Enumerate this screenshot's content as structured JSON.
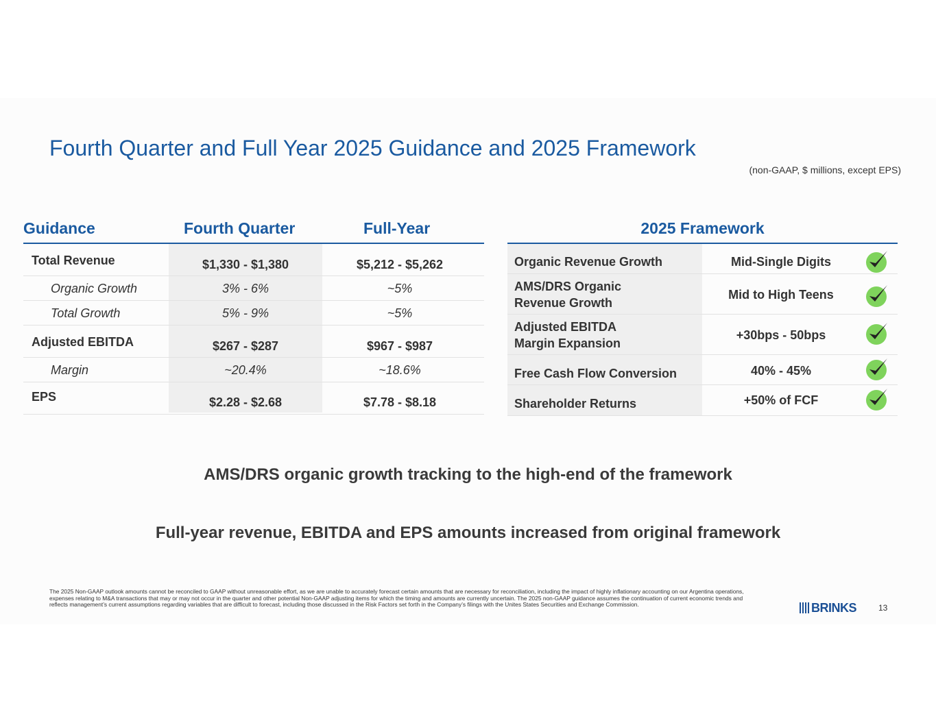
{
  "slide": {
    "title": "Fourth Quarter and Full Year 2025 Guidance and 2025 Framework",
    "subtitle": "(non-GAAP, $ millions, except EPS)",
    "page_number": "13",
    "logo_text": "BRINKS"
  },
  "guidance": {
    "headers": [
      "Guidance",
      "Fourth Quarter",
      "Full-Year"
    ],
    "rows": [
      {
        "label": "Total Revenue",
        "q4": "$1,330 - $1,380",
        "fy": "$5,212 - $5,262"
      },
      {
        "label": "Organic Growth",
        "q4": "3% - 6%",
        "fy": "~5%"
      },
      {
        "label": "Total Growth",
        "q4": "5% - 9%",
        "fy": "~5%"
      },
      {
        "label": "Adjusted EBITDA",
        "q4": "$267 - $287",
        "fy": "$967 - $987"
      },
      {
        "label": "Margin",
        "q4": "~20.4%",
        "fy": "~18.6%"
      },
      {
        "label": "EPS",
        "q4": "$2.28 - $2.68",
        "fy": "$7.78 - $8.18"
      }
    ]
  },
  "framework": {
    "header": "2025 Framework",
    "rows": [
      {
        "label": "Organic Revenue Growth",
        "value": "Mid-Single Digits"
      },
      {
        "label_line1": "AMS/DRS Organic",
        "label_line2": "Revenue Growth",
        "value": "Mid to High Teens"
      },
      {
        "label_line1": "Adjusted EBITDA",
        "label_line2": "Margin Expansion",
        "value": "+30bps - 50bps"
      },
      {
        "label": "Free Cash Flow Conversion",
        "value": "40% - 45%"
      },
      {
        "label": "Shareholder Returns",
        "value": "+50% of FCF"
      }
    ],
    "check_icon": "checkmark-icon",
    "check_color": "#5cb83c"
  },
  "messages": [
    "AMS/DRS organic growth tracking to the high-end of the framework",
    "Full-year revenue, EBITDA and EPS amounts increased from original framework"
  ],
  "footnote": "The 2025 Non-GAAP outlook amounts cannot be reconciled to GAAP without unreasonable effort, as we are unable to accurately forecast certain amounts that are necessary for reconciliation, including the impact of highly inflationary accounting on our Argentina operations, expenses relating to M&A transactions that may or may not occur in the quarter and other potential Non-GAAP adjusting items for which the timing and amounts are currently uncertain.  The 2025 non-GAAP guidance assumes the continuation of current economic trends and reflects management’s current assumptions regarding variables that are difficult to forecast, including those discussed in the Risk Factors set forth in the Company’s filings with the Unites States Securities and Exchange Commission.",
  "colors": {
    "accent": "#1a5aa0",
    "text": "#333333",
    "shade": "#efefef"
  }
}
